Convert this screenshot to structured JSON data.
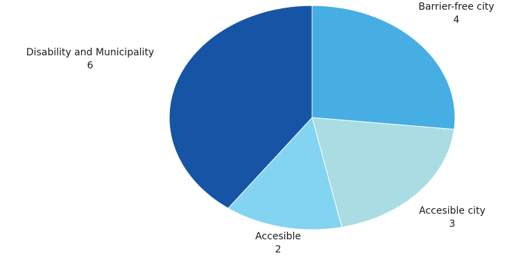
{
  "chart_data": {
    "type": "pie",
    "slices": [
      {
        "label": "Barrier-free city",
        "value": 4,
        "color": "#46aee3"
      },
      {
        "label": "Accesible city",
        "value": 3,
        "color": "#a9dde3"
      },
      {
        "label": "Accesible",
        "value": 2,
        "color": "#82d4f0"
      },
      {
        "label": "Disability and Municipality",
        "value": 6,
        "color": "#1655a5"
      }
    ],
    "start": "12 o'clock",
    "direction": "clockwise",
    "legend": "none",
    "data_labels": "category name and value"
  }
}
